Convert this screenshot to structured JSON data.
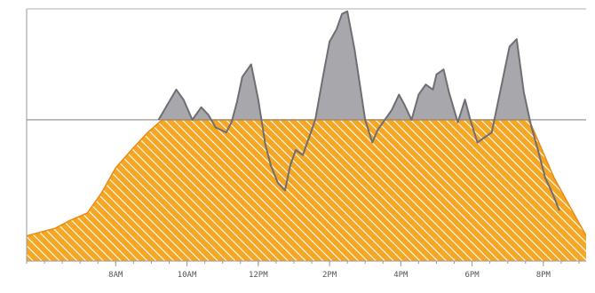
{
  "chart_data": {
    "type": "area",
    "title": "",
    "xlabel": "",
    "ylabel": "",
    "x_ticks": [
      "8AM",
      "10AM",
      "12PM",
      "2PM",
      "4PM",
      "6PM",
      "8PM"
    ],
    "x_tick_hours": [
      8,
      10,
      12,
      14,
      16,
      18,
      20
    ],
    "xlim": [
      5.5,
      21.2
    ],
    "ylim": [
      0,
      100
    ],
    "reference_line": 56,
    "series": [
      {
        "role": "capacity",
        "style": "orange-diagonal-hatch",
        "x": [
          5.5,
          6.3,
          6.7,
          7.2,
          7.6,
          8.0,
          8.5,
          8.9,
          9.3,
          19.6,
          20.3,
          21.2
        ],
        "y": [
          10,
          13,
          16,
          19,
          27,
          37,
          45,
          51,
          56,
          56,
          33,
          10
        ]
      },
      {
        "role": "demand",
        "style": "gray-area",
        "x": [
          9.2,
          9.45,
          9.7,
          9.9,
          10.15,
          10.4,
          10.6,
          10.8,
          11.1,
          11.25,
          11.4,
          11.55,
          11.8,
          12.0,
          12.2,
          12.35,
          12.55,
          12.75,
          12.9,
          13.05,
          13.25,
          13.4,
          13.6,
          13.8,
          14.0,
          14.2,
          14.35,
          14.5,
          14.7,
          14.85,
          15.0,
          15.2,
          15.35,
          15.55,
          15.75,
          15.95,
          16.1,
          16.3,
          16.5,
          16.7,
          16.9,
          17.0,
          17.2,
          17.35,
          17.6,
          17.8,
          17.95,
          18.15,
          18.35,
          18.55,
          18.8,
          19.05,
          19.25,
          19.45,
          19.65,
          19.85,
          20.05,
          20.25,
          20.45
        ],
        "y": [
          56,
          62,
          68,
          64,
          56,
          61,
          58,
          53,
          51,
          55,
          63,
          73,
          78,
          64,
          46,
          38,
          31,
          28,
          38,
          44,
          42,
          48,
          56,
          72,
          87,
          92,
          98,
          99,
          84,
          70,
          56,
          47,
          52,
          56,
          60,
          66,
          62,
          56,
          66,
          70,
          68,
          74,
          76,
          67,
          55,
          64,
          56,
          47,
          49,
          51,
          68,
          85,
          88,
          67,
          54,
          44,
          33,
          27,
          20
        ]
      }
    ],
    "grid": false,
    "legend": "none",
    "colors": {
      "capacity_fill": "#f5a623",
      "capacity_stroke": "#ea8a12",
      "capacity_hatch": "#ffffff",
      "demand_fill": "#a8a8ac",
      "demand_line": "#6e6e74",
      "reference_line": "#8c8c8c",
      "axis": "#9a9a9a",
      "tick_label": "#555555"
    }
  }
}
